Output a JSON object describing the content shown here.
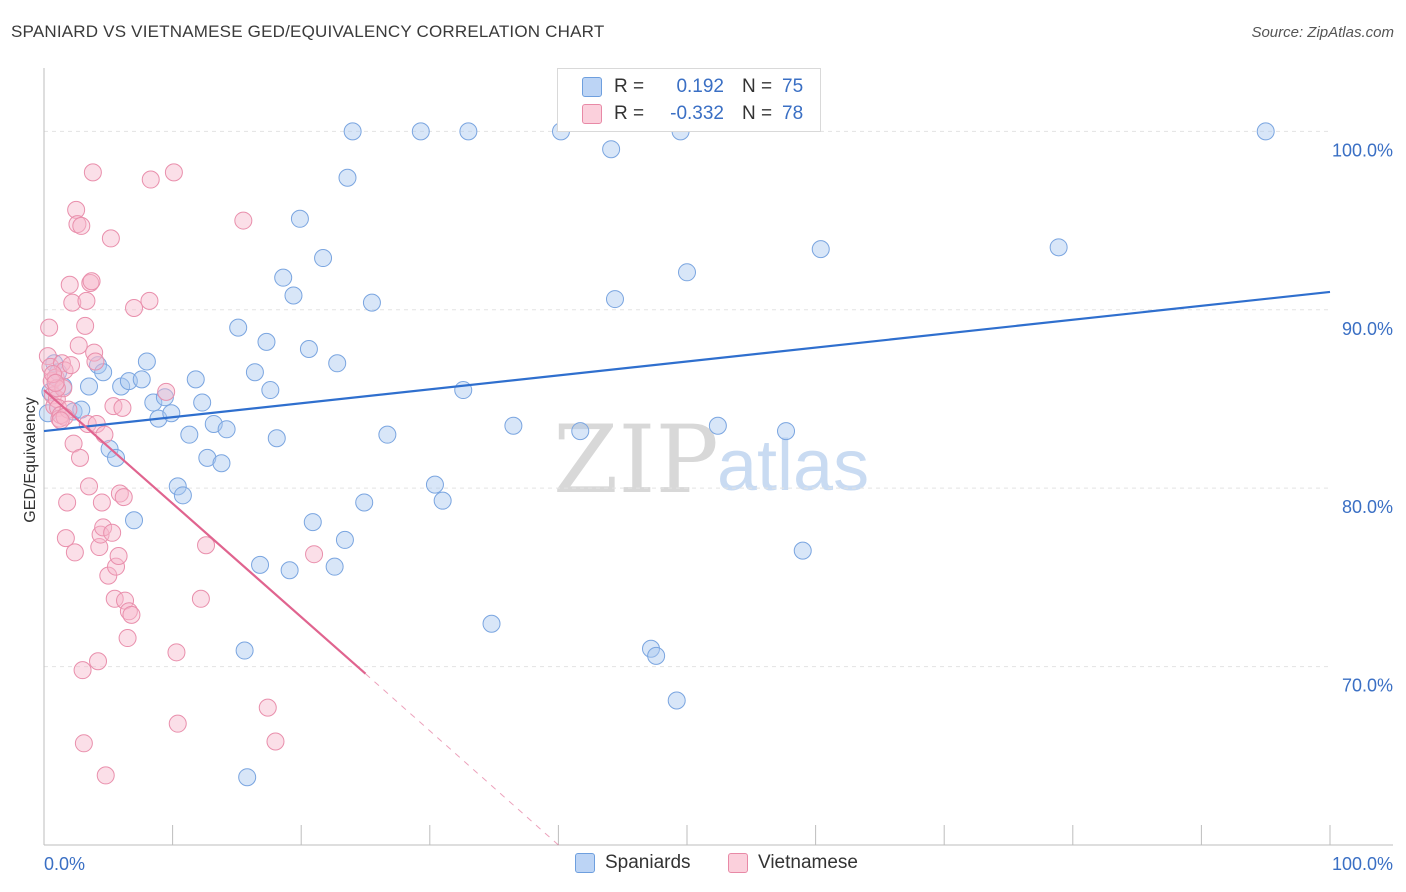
{
  "header": {
    "title": "SPANIARD VS VIETNAMESE GED/EQUIVALENCY CORRELATION CHART",
    "source": "Source: ZipAtlas.com"
  },
  "watermark": {
    "zip": "ZIP",
    "atlas": "atlas"
  },
  "legend": {
    "rows": [
      {
        "r_label": "R =",
        "r_value": "0.192",
        "n_label": "N =",
        "n_value": "75",
        "color": "#a8c7f0",
        "border": "#6e9fde"
      },
      {
        "r_label": "R =",
        "r_value": "-0.332",
        "n_label": "N =",
        "n_value": "78",
        "color": "#f7b9cb",
        "border": "#e889a6"
      }
    ]
  },
  "bottom_legend": {
    "spaniards": "Spaniards",
    "vietnamese": "Vietnamese"
  },
  "colors": {
    "spaniards_fill": "rgba(168,199,240,0.45)",
    "spaniards_stroke": "#7aa5e0",
    "spaniards_line": "#2f6fce",
    "vietnamese_fill": "rgba(247,185,203,0.45)",
    "vietnamese_stroke": "#e98fac",
    "vietnamese_line": "#e0648f",
    "tick_label": "#3a6fc4",
    "grid": "#e3e3e3"
  },
  "chart_data": {
    "type": "scatter",
    "title": "SPANIARD VS VIETNAMESE GED/EQUIVALENCY CORRELATION CHART",
    "xlabel": "",
    "ylabel": "GED/Equivalency",
    "xlim": [
      0,
      100
    ],
    "ylim": [
      60,
      104
    ],
    "x_tick_labels": [
      "0.0%",
      "100.0%"
    ],
    "y_ticks": [
      70,
      80,
      90,
      100
    ],
    "y_tick_labels": [
      "70.0%",
      "80.0%",
      "90.0%",
      "100.0%"
    ],
    "grid": true,
    "series": [
      {
        "name": "Spaniards",
        "points": [
          [
            0.3,
            84.2
          ],
          [
            0.5,
            85.4
          ],
          [
            0.8,
            87.0
          ],
          [
            1.1,
            86.5
          ],
          [
            1.5,
            85.7
          ],
          [
            2.3,
            84.3
          ],
          [
            2.9,
            84.4
          ],
          [
            3.5,
            85.7
          ],
          [
            4.2,
            86.9
          ],
          [
            4.6,
            86.5
          ],
          [
            5.1,
            82.2
          ],
          [
            5.6,
            81.7
          ],
          [
            6.0,
            85.7
          ],
          [
            6.6,
            86.0
          ],
          [
            7.0,
            78.2
          ],
          [
            7.6,
            86.1
          ],
          [
            8.0,
            87.1
          ],
          [
            8.5,
            84.8
          ],
          [
            8.9,
            83.9
          ],
          [
            9.4,
            85.1
          ],
          [
            9.9,
            84.2
          ],
          [
            10.4,
            80.1
          ],
          [
            10.8,
            79.6
          ],
          [
            11.3,
            83.0
          ],
          [
            11.8,
            86.1
          ],
          [
            12.3,
            84.8
          ],
          [
            12.7,
            81.7
          ],
          [
            13.2,
            83.6
          ],
          [
            13.8,
            81.4
          ],
          [
            14.2,
            83.3
          ],
          [
            15.1,
            89.0
          ],
          [
            15.6,
            70.9
          ],
          [
            16.4,
            86.5
          ],
          [
            16.8,
            75.7
          ],
          [
            17.3,
            88.2
          ],
          [
            17.6,
            85.5
          ],
          [
            18.1,
            82.8
          ],
          [
            18.6,
            91.8
          ],
          [
            19.1,
            75.4
          ],
          [
            19.4,
            90.8
          ],
          [
            19.9,
            95.1
          ],
          [
            20.6,
            87.8
          ],
          [
            20.9,
            78.1
          ],
          [
            21.7,
            92.9
          ],
          [
            22.8,
            87.0
          ],
          [
            22.6,
            75.6
          ],
          [
            23.4,
            77.1
          ],
          [
            23.6,
            97.4
          ],
          [
            24.0,
            100.0
          ],
          [
            24.9,
            79.2
          ],
          [
            25.5,
            90.4
          ],
          [
            26.7,
            83.0
          ],
          [
            29.3,
            100.0
          ],
          [
            30.4,
            80.2
          ],
          [
            31.0,
            79.3
          ],
          [
            32.6,
            85.5
          ],
          [
            33.0,
            100.0
          ],
          [
            34.8,
            72.4
          ],
          [
            36.5,
            83.5
          ],
          [
            40.2,
            100.0
          ],
          [
            41.7,
            83.2
          ],
          [
            44.1,
            99.0
          ],
          [
            44.4,
            90.6
          ],
          [
            47.2,
            71.0
          ],
          [
            47.6,
            70.6
          ],
          [
            49.2,
            68.1
          ],
          [
            49.5,
            100.0
          ],
          [
            50.0,
            92.1
          ],
          [
            52.4,
            83.5
          ],
          [
            57.7,
            83.2
          ],
          [
            59.0,
            76.5
          ],
          [
            60.4,
            93.4
          ],
          [
            78.9,
            93.5
          ],
          [
            95.0,
            100.0
          ],
          [
            15.8,
            63.8
          ]
        ],
        "trend": {
          "x": [
            0,
            100
          ],
          "y": [
            83.2,
            91.0
          ]
        }
      },
      {
        "name": "Vietnamese",
        "points": [
          [
            0.3,
            87.4
          ],
          [
            0.4,
            89.0
          ],
          [
            0.5,
            86.8
          ],
          [
            0.6,
            86.0
          ],
          [
            0.7,
            85.2
          ],
          [
            0.8,
            84.6
          ],
          [
            0.9,
            86.2
          ],
          [
            1.0,
            85.0
          ],
          [
            1.1,
            84.5
          ],
          [
            1.2,
            83.9
          ],
          [
            1.3,
            84.1
          ],
          [
            1.4,
            87.0
          ],
          [
            1.5,
            85.6
          ],
          [
            1.6,
            86.6
          ],
          [
            1.7,
            77.2
          ],
          [
            1.8,
            79.2
          ],
          [
            1.9,
            84.4
          ],
          [
            2.0,
            91.4
          ],
          [
            2.2,
            90.4
          ],
          [
            2.3,
            82.5
          ],
          [
            2.4,
            76.4
          ],
          [
            2.5,
            95.6
          ],
          [
            2.6,
            94.8
          ],
          [
            2.7,
            88.0
          ],
          [
            2.8,
            81.7
          ],
          [
            2.9,
            94.7
          ],
          [
            3.0,
            69.8
          ],
          [
            3.1,
            65.7
          ],
          [
            3.2,
            89.1
          ],
          [
            3.3,
            90.5
          ],
          [
            3.4,
            83.6
          ],
          [
            3.5,
            80.1
          ],
          [
            3.6,
            91.5
          ],
          [
            3.7,
            91.6
          ],
          [
            3.8,
            97.7
          ],
          [
            3.9,
            87.6
          ],
          [
            4.0,
            87.1
          ],
          [
            4.1,
            83.6
          ],
          [
            4.2,
            70.3
          ],
          [
            4.3,
            76.7
          ],
          [
            4.4,
            77.4
          ],
          [
            4.5,
            79.2
          ],
          [
            4.6,
            77.8
          ],
          [
            4.7,
            83.0
          ],
          [
            4.8,
            63.9
          ],
          [
            5.0,
            75.1
          ],
          [
            5.2,
            94.0
          ],
          [
            5.3,
            77.5
          ],
          [
            5.4,
            84.6
          ],
          [
            5.5,
            73.8
          ],
          [
            5.6,
            75.6
          ],
          [
            5.8,
            76.2
          ],
          [
            5.9,
            79.7
          ],
          [
            6.1,
            84.5
          ],
          [
            6.2,
            79.5
          ],
          [
            6.3,
            73.7
          ],
          [
            6.5,
            71.6
          ],
          [
            6.6,
            73.1
          ],
          [
            6.8,
            72.9
          ],
          [
            7.0,
            90.1
          ],
          [
            8.2,
            90.5
          ],
          [
            8.3,
            97.3
          ],
          [
            9.5,
            85.4
          ],
          [
            10.1,
            97.7
          ],
          [
            10.3,
            70.8
          ],
          [
            10.4,
            66.8
          ],
          [
            12.2,
            73.8
          ],
          [
            12.6,
            76.8
          ],
          [
            15.5,
            95.0
          ],
          [
            17.4,
            67.7
          ],
          [
            18.0,
            65.8
          ],
          [
            21.0,
            76.3
          ],
          [
            1.0,
            85.6
          ],
          [
            1.6,
            84.0
          ],
          [
            0.7,
            86.4
          ],
          [
            2.1,
            86.9
          ],
          [
            1.3,
            83.8
          ],
          [
            0.9,
            85.9
          ]
        ],
        "trend": {
          "x": [
            0,
            25
          ],
          "y": [
            85.5,
            69.6
          ]
        },
        "trend_extension": {
          "x": [
            25,
            40
          ],
          "y": [
            69.6,
            60.0
          ]
        }
      }
    ]
  }
}
